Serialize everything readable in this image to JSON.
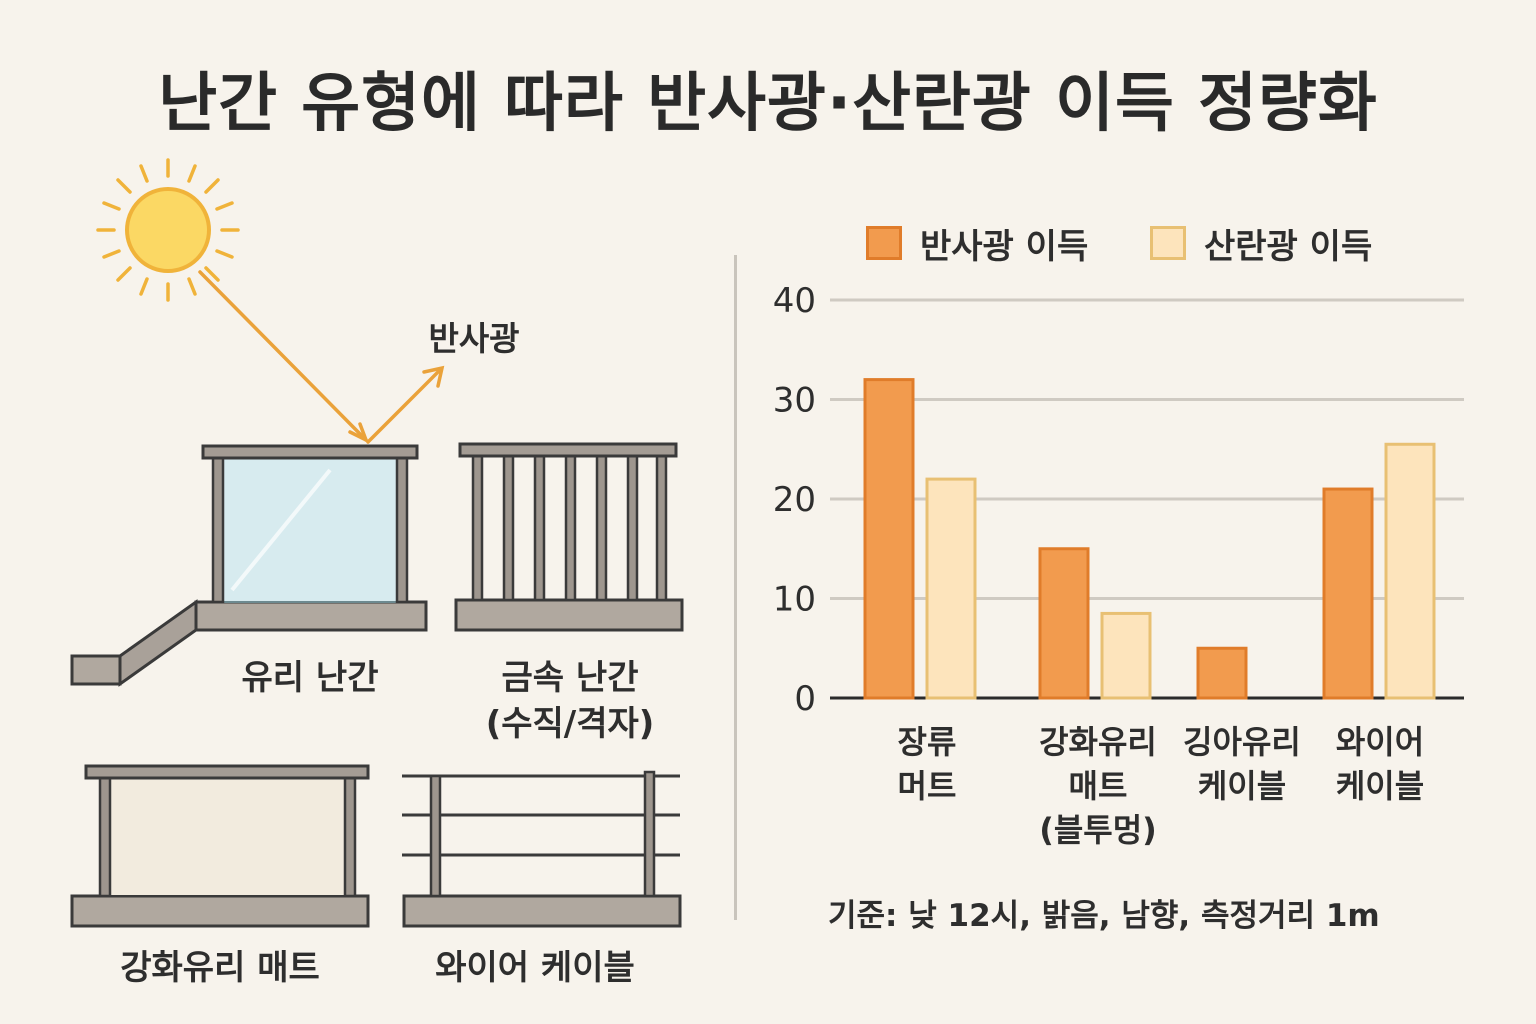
{
  "title": "난간 유형에 따라 반사광·산란광 이득 정량화",
  "illustration": {
    "reflect_label": "반사광",
    "panels": [
      {
        "id": "glass",
        "label": "유리 난간"
      },
      {
        "id": "metal",
        "label": "금속 난간\n(수직/격자)"
      },
      {
        "id": "tempered",
        "label": "강화유리 매트"
      },
      {
        "id": "wire",
        "label": "와이어 케이블"
      }
    ]
  },
  "legend": {
    "reflect": "반사광 이득",
    "scatter": "산란광 이득"
  },
  "colors": {
    "reflect_fill": "#f29b4e",
    "reflect_stroke": "#e07c2a",
    "scatter_fill": "#fde4bc",
    "scatter_stroke": "#e8c073"
  },
  "chart_data": {
    "type": "bar",
    "categories": [
      "장류\n머트",
      "강화유리\n매트\n(블투멍)",
      "깅아유리\n케이블",
      "와이어\n케이블"
    ],
    "series": [
      {
        "name": "반사광 이득",
        "values": [
          32,
          15,
          5,
          21
        ]
      },
      {
        "name": "산란광 이득",
        "values": [
          22,
          8.5,
          null,
          25.5
        ]
      }
    ],
    "yticks": [
      "0",
      "10",
      "20",
      "30",
      "40"
    ],
    "ylim": [
      0,
      40
    ],
    "grid": true,
    "legend_position": "top"
  },
  "note": "기준: 낮 12시, 밝음, 남향, 측정거리 1m"
}
